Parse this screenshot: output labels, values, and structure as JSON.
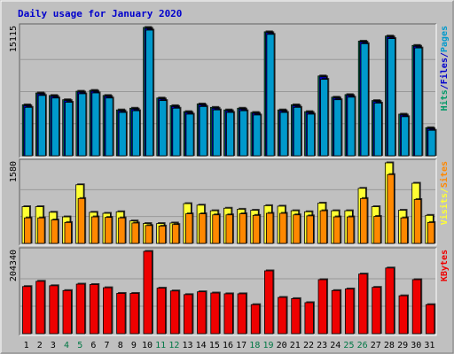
{
  "title": "Daily usage for January 2020",
  "colors": {
    "page_bg": "#c0c0c0",
    "panel_bg": "#c0c0c0",
    "grid": "#999999",
    "title": "#0000cc",
    "pages": "#0099cc",
    "hits": "#009966",
    "files": "#0000cc",
    "visits": "#ffff33",
    "sites": "#ff8800",
    "kbytes": "#ee0000",
    "weekend_day": "#007744",
    "weekday": "#000000"
  },
  "chart_data": [
    {
      "type": "bar",
      "panel": "top",
      "ymax_label": "15115",
      "ymax": 15115,
      "categories": [
        "1",
        "2",
        "3",
        "4",
        "5",
        "6",
        "7",
        "8",
        "9",
        "10",
        "11",
        "12",
        "13",
        "14",
        "15",
        "16",
        "17",
        "18",
        "19",
        "20",
        "21",
        "22",
        "23",
        "24",
        "25",
        "26",
        "27",
        "28",
        "29",
        "30",
        "31"
      ],
      "weekend_days": [
        "4",
        "5",
        "11",
        "12",
        "18",
        "19",
        "25",
        "26"
      ],
      "side_labels": [
        {
          "text": "Pages",
          "color_key": "pages"
        },
        {
          "text": "/",
          "color_key": "files"
        },
        {
          "text": "Files",
          "color_key": "files"
        },
        {
          "text": "/",
          "color_key": "files"
        },
        {
          "text": "Hits",
          "color_key": "hits"
        }
      ],
      "series": [
        {
          "name": "Hits",
          "color_key": "hits",
          "values": [
            6000,
            7400,
            7100,
            6600,
            7600,
            7700,
            7100,
            5400,
            5600,
            15115,
            6800,
            5900,
            5200,
            6100,
            5700,
            5400,
            5600,
            5100,
            14600,
            5400,
            6000,
            5200,
            9400,
            6900,
            7200,
            13500,
            6500,
            14100,
            4900,
            13000,
            3300
          ]
        },
        {
          "name": "Files",
          "color_key": "files",
          "values": [
            5900,
            7300,
            7000,
            6500,
            7500,
            7600,
            7000,
            5300,
            5500,
            15000,
            6700,
            5800,
            5100,
            6000,
            5600,
            5300,
            5500,
            5000,
            14500,
            5300,
            5900,
            5100,
            9300,
            6800,
            7100,
            13400,
            6400,
            14000,
            4800,
            12900,
            3200
          ]
        },
        {
          "name": "Pages",
          "color_key": "pages",
          "values": [
            5700,
            7100,
            6800,
            6300,
            7300,
            7400,
            6800,
            5100,
            5300,
            14800,
            6500,
            5600,
            4900,
            5800,
            5400,
            5100,
            5300,
            4800,
            14300,
            5100,
            5700,
            4900,
            9000,
            6600,
            6900,
            13200,
            6200,
            13800,
            4600,
            12700,
            3000
          ]
        }
      ]
    },
    {
      "type": "bar",
      "panel": "middle",
      "ymax_label": "1580",
      "ymax": 1580,
      "side_labels": [
        {
          "text": "Sites",
          "color_key": "sites"
        },
        {
          "text": "/",
          "color_key": "visits"
        },
        {
          "text": "Visits",
          "color_key": "visits"
        }
      ],
      "series": [
        {
          "name": "Visits",
          "color_key": "visits",
          "values": [
            720,
            720,
            610,
            520,
            1150,
            610,
            590,
            620,
            440,
            390,
            390,
            400,
            780,
            750,
            640,
            690,
            670,
            650,
            740,
            730,
            640,
            620,
            790,
            640,
            640,
            1080,
            720,
            1580,
            650,
            1180,
            550
          ]
        },
        {
          "name": "Sites",
          "color_key": "sites",
          "values": [
            500,
            500,
            460,
            410,
            880,
            520,
            510,
            500,
            400,
            350,
            340,
            370,
            580,
            580,
            560,
            560,
            580,
            550,
            590,
            590,
            560,
            540,
            640,
            520,
            520,
            880,
            530,
            1350,
            500,
            860,
            410
          ]
        }
      ]
    },
    {
      "type": "bar",
      "panel": "bottom",
      "ymax_label": "204340",
      "ymax": 204340,
      "side_labels": [
        {
          "text": "KBytes",
          "color_key": "kbytes"
        }
      ],
      "series": [
        {
          "name": "KBytes",
          "color_key": "kbytes",
          "values": [
            117000,
            130000,
            119000,
            107000,
            123000,
            122000,
            114000,
            100000,
            100000,
            204340,
            113000,
            106000,
            97000,
            104000,
            101000,
            99000,
            99000,
            72000,
            156000,
            90000,
            87000,
            77000,
            134000,
            107000,
            111000,
            148000,
            115000,
            163000,
            94000,
            134000,
            72000
          ]
        }
      ]
    }
  ]
}
